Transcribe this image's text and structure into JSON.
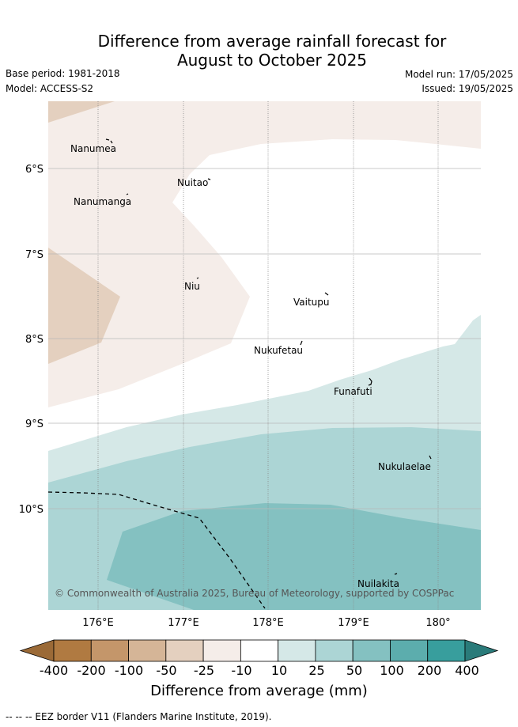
{
  "header": {
    "title_line1": "Difference from average rainfall forecast for",
    "title_line2": "August to October 2025",
    "base_period": "Base period: 1981-2018",
    "model": "Model: ACCESS-S2",
    "model_run": "Model run: 17/05/2025",
    "issued": "Issued: 19/05/2025"
  },
  "map": {
    "lat_labels": [
      "6°S",
      "7°S",
      "8°S",
      "9°S",
      "10°S"
    ],
    "lon_labels": [
      "176°E",
      "177°E",
      "178°E",
      "179°E",
      "180°"
    ],
    "places": [
      {
        "name": "Nanumea"
      },
      {
        "name": "Nuitao"
      },
      {
        "name": "Nanumanga"
      },
      {
        "name": "Niu"
      },
      {
        "name": "Vaitupu"
      },
      {
        "name": "Nukufetau"
      },
      {
        "name": "Funafuti"
      },
      {
        "name": "Nukulaelae"
      },
      {
        "name": "Nuilakita"
      }
    ],
    "copyright": "© Commonwealth of Australia 2025, Bureau of Meteorology, supported by COSPPac"
  },
  "colorbar": {
    "ticks": [
      "-400",
      "-200",
      "-100",
      "-50",
      "-25",
      "-10",
      "10",
      "25",
      "50",
      "100",
      "200",
      "400"
    ],
    "colors": [
      "#b07a41",
      "#c4966a",
      "#d5b597",
      "#e4d0bf",
      "#f5ede9",
      "#ffffff",
      "#d5e8e7",
      "#acd5d5",
      "#84c1c1",
      "#5cadad",
      "#389e9d"
    ],
    "end_colors": {
      "low": "#9b6a37",
      "high": "#2a7b7a"
    },
    "title": "Difference from average (mm)"
  },
  "footer": {
    "eez_legend": "--  --  -- EEZ border V11 (Flanders Marine Institute, 2019)."
  }
}
